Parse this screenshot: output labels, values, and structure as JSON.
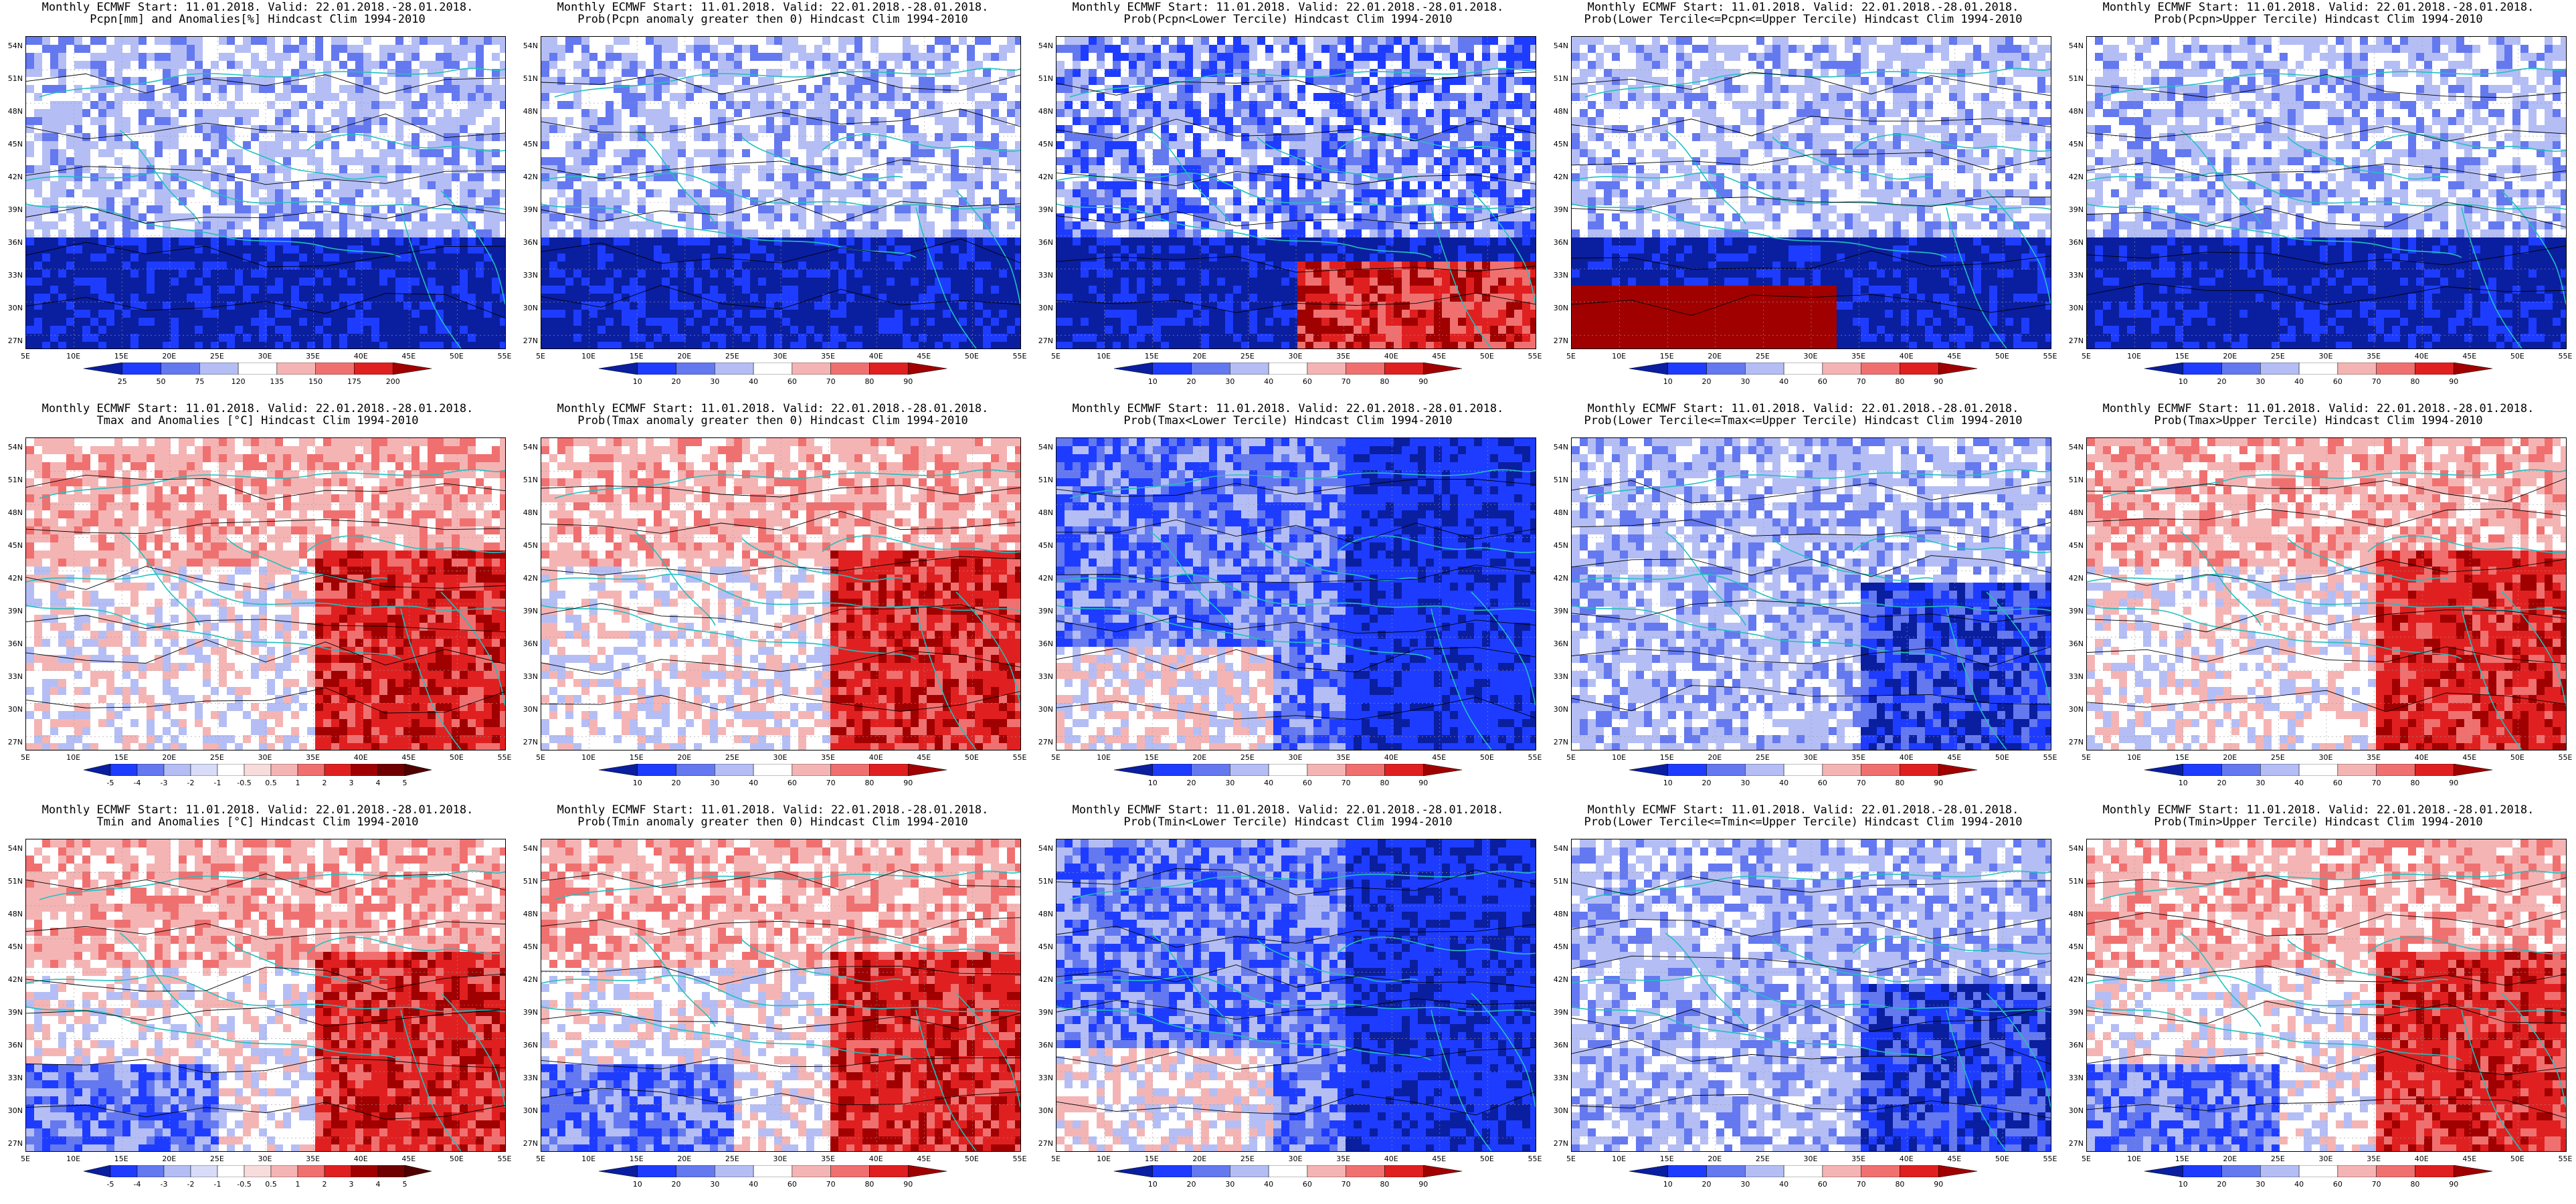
{
  "titles": [
    {
      "line1": "Monthly ECMWF Start: 11.01.2018. Valid: 22.01.2018.-28.01.2018.",
      "line2": "Pcpn[mm] and Anomalies[%] Hindcast Clim 1994-2010"
    },
    {
      "line1": "Monthly ECMWF Start: 11.01.2018. Valid: 22.01.2018.-28.01.2018.",
      "line2": "Prob(Pcpn anomaly greater then 0) Hindcast Clim 1994-2010"
    },
    {
      "line1": "Monthly ECMWF Start: 11.01.2018. Valid: 22.01.2018.-28.01.2018.",
      "line2": "Prob(Pcpn<Lower Tercile) Hindcast Clim 1994-2010"
    },
    {
      "line1": "Monthly ECMWF Start: 11.01.2018. Valid: 22.01.2018.-28.01.2018.",
      "line2": "Prob(Lower Tercile<=Pcpn<=Upper Tercile) Hindcast Clim 1994-2010"
    },
    {
      "line1": "Monthly ECMWF Start: 11.01.2018. Valid: 22.01.2018.-28.01.2018.",
      "line2": "Prob(Pcpn>Upper Tercile) Hindcast Clim 1994-2010"
    },
    {
      "line1": "Monthly ECMWF Start: 11.01.2018. Valid: 22.01.2018.-28.01.2018.",
      "line2": "Tmax and Anomalies [°C] Hindcast Clim 1994-2010"
    },
    {
      "line1": "Monthly ECMWF Start: 11.01.2018. Valid: 22.01.2018.-28.01.2018.",
      "line2": "Prob(Tmax anomaly greater then 0) Hindcast Clim 1994-2010"
    },
    {
      "line1": "Monthly ECMWF Start: 11.01.2018. Valid: 22.01.2018.-28.01.2018.",
      "line2": "Prob(Tmax<Lower Tercile) Hindcast Clim 1994-2010"
    },
    {
      "line1": "Monthly ECMWF Start: 11.01.2018. Valid: 22.01.2018.-28.01.2018.",
      "line2": "Prob(Lower Tercile<=Tmax<=Upper Tercile) Hindcast Clim 1994-2010"
    },
    {
      "line1": "Monthly ECMWF Start: 11.01.2018. Valid: 22.01.2018.-28.01.2018.",
      "line2": "Prob(Tmax>Upper Tercile) Hindcast Clim 1994-2010"
    },
    {
      "line1": "Monthly ECMWF Start: 11.01.2018. Valid: 22.01.2018.-28.01.2018.",
      "line2": "Tmin and Anomalies [°C] Hindcast Clim 1994-2010"
    },
    {
      "line1": "Monthly ECMWF Start: 11.01.2018. Valid: 22.01.2018.-28.01.2018.",
      "line2": "Prob(Tmin anomaly greater then 0) Hindcast Clim 1994-2010"
    },
    {
      "line1": "Monthly ECMWF Start: 11.01.2018. Valid: 22.01.2018.-28.01.2018.",
      "line2": "Prob(Tmin<Lower Tercile) Hindcast Clim 1994-2010"
    },
    {
      "line1": "Monthly ECMWF Start: 11.01.2018. Valid: 22.01.2018.-28.01.2018.",
      "line2": "Prob(Lower Tercile<=Tmin<=Upper Tercile) Hindcast Clim 1994-2010"
    },
    {
      "line1": "Monthly ECMWF Start: 11.01.2018. Valid: 22.01.2018.-28.01.2018.",
      "line2": "Prob(Tmin>Upper Tercile) Hindcast Clim 1994-2010"
    }
  ],
  "lat_labels": [
    "54N",
    "51N",
    "48N",
    "45N",
    "42N",
    "39N",
    "36N",
    "33N",
    "30N",
    "27N"
  ],
  "lon_labels": [
    "5E",
    "10E",
    "15E",
    "20E",
    "25E",
    "30E",
    "35E",
    "40E",
    "45E",
    "50E",
    "55E"
  ],
  "colorbars": {
    "pcpn_anom": [
      "25",
      "50",
      "75",
      "120",
      "135",
      "150",
      "175",
      "200"
    ],
    "prob": [
      "10",
      "20",
      "30",
      "40",
      "60",
      "70",
      "80",
      "90"
    ],
    "temp_anom": [
      "-5",
      "-4",
      "-3",
      "-2",
      "-1",
      "-0.5",
      "0.5",
      "1",
      "2",
      "3",
      "4",
      "5"
    ]
  },
  "colors": {
    "deep_blue": "#0a1ea0",
    "blue": "#1e3cff",
    "mid_blue": "#6478f0",
    "light_blue": "#b4bef5",
    "white": "#ffffff",
    "light_red": "#f5b4b4",
    "mid_red": "#f07070",
    "red": "#e02020",
    "deep_red": "#a00000",
    "coast": "#20c0c0",
    "contour": "#000000"
  }
}
